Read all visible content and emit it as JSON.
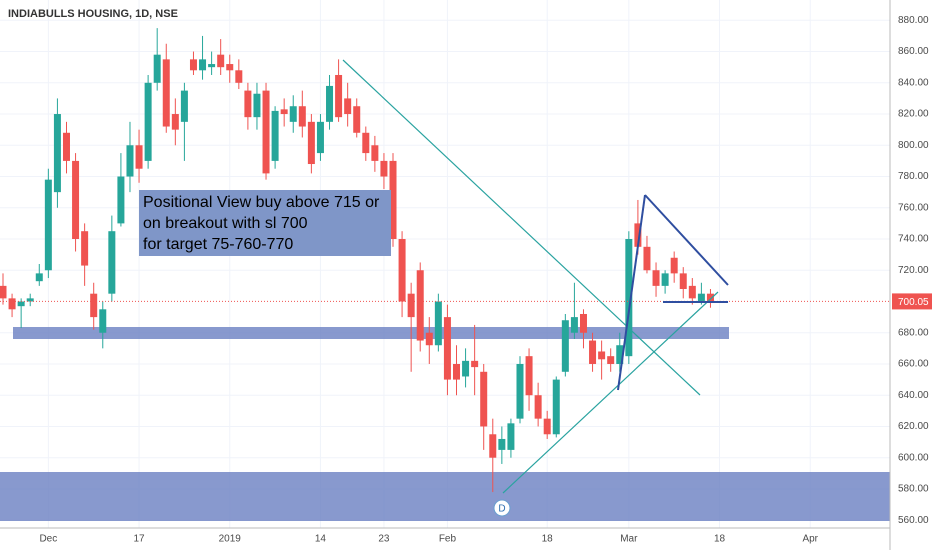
{
  "chart_data": {
    "type": "candlestick",
    "title": "INDIABULLS HOUSING, 1D, NSE",
    "categories": [
      null,
      null,
      null,
      null,
      null,
      "Dec",
      null,
      null,
      null,
      null,
      null,
      null,
      null,
      null,
      null,
      "17",
      null,
      null,
      null,
      null,
      null,
      null,
      null,
      null,
      null,
      "2019",
      null,
      null,
      null,
      null,
      null,
      null,
      null,
      null,
      null,
      "14",
      null,
      null,
      null,
      null,
      null,
      null,
      "23",
      null,
      null,
      null,
      null,
      null,
      null,
      "Feb",
      null,
      null,
      null,
      null,
      null,
      null,
      null,
      null,
      null,
      null,
      "18",
      null,
      null,
      null,
      null,
      null,
      null,
      null,
      null,
      "Mar",
      null,
      null,
      null,
      null,
      null,
      null,
      null,
      null,
      null,
      "18",
      null,
      null,
      null,
      null,
      null,
      null,
      null,
      null,
      null,
      "Apr"
    ],
    "open": [
      710,
      702,
      697,
      700,
      713,
      720,
      770,
      808,
      790,
      745,
      705,
      680,
      705,
      750,
      780,
      800,
      790,
      840,
      855,
      820,
      815,
      855,
      848,
      850,
      858,
      852,
      848,
      835,
      818,
      835,
      790,
      823,
      815,
      825,
      815,
      795,
      815,
      845,
      830,
      825,
      808,
      800,
      790,
      790,
      740,
      705,
      720,
      680,
      672,
      690,
      660,
      652,
      662,
      655,
      615,
      605,
      605,
      625,
      665,
      640,
      625,
      615,
      655,
      680,
      692,
      675,
      668,
      665,
      660,
      665,
      750,
      735,
      720,
      710,
      728,
      718,
      710,
      700,
      705,
      null,
      null,
      null,
      null,
      null,
      null,
      null,
      null,
      null,
      null,
      null
    ],
    "high": [
      718,
      705,
      702,
      705,
      724,
      785,
      830,
      815,
      795,
      750,
      712,
      700,
      755,
      795,
      815,
      810,
      845,
      875,
      865,
      830,
      840,
      860,
      870,
      860,
      868,
      858,
      855,
      840,
      840,
      840,
      825,
      830,
      832,
      835,
      820,
      820,
      845,
      855,
      840,
      830,
      812,
      806,
      795,
      795,
      745,
      712,
      725,
      690,
      705,
      698,
      672,
      670,
      685,
      660,
      625,
      620,
      625,
      665,
      670,
      648,
      630,
      652,
      692,
      712,
      695,
      680,
      675,
      670,
      680,
      745,
      765,
      742,
      725,
      720,
      732,
      722,
      715,
      712,
      708,
      null,
      null,
      null,
      null,
      null,
      null,
      null,
      null,
      null,
      null,
      null
    ],
    "low": [
      698,
      690,
      683,
      697,
      710,
      715,
      760,
      782,
      732,
      710,
      682,
      670,
      700,
      748,
      770,
      776,
      785,
      835,
      808,
      800,
      790,
      845,
      842,
      845,
      845,
      840,
      836,
      810,
      810,
      778,
      785,
      812,
      808,
      805,
      782,
      790,
      810,
      815,
      812,
      805,
      790,
      783,
      772,
      735,
      690,
      655,
      668,
      660,
      668,
      640,
      640,
      645,
      640,
      605,
      578,
      596,
      600,
      622,
      630,
      620,
      612,
      613,
      652,
      676,
      670,
      655,
      650,
      655,
      655,
      660,
      730,
      718,
      703,
      705,
      712,
      702,
      698,
      698,
      696,
      null,
      null,
      null,
      null,
      null,
      null,
      null,
      null,
      null,
      null,
      null
    ],
    "close": [
      702,
      695,
      700,
      702,
      718,
      778,
      820,
      790,
      740,
      723,
      690,
      695,
      745,
      780,
      800,
      785,
      840,
      858,
      812,
      810,
      835,
      848,
      855,
      852,
      850,
      848,
      840,
      818,
      833,
      782,
      822,
      820,
      825,
      812,
      788,
      815,
      838,
      818,
      820,
      808,
      795,
      790,
      780,
      740,
      700,
      690,
      675,
      672,
      700,
      650,
      650,
      662,
      658,
      620,
      600,
      612,
      622,
      660,
      640,
      625,
      615,
      650,
      688,
      690,
      680,
      660,
      663,
      660,
      672,
      740,
      735,
      720,
      710,
      718,
      718,
      708,
      702,
      705,
      700,
      null,
      null,
      null,
      null,
      null,
      null,
      null,
      null,
      null,
      null,
      null
    ],
    "up_color": "#26a69a",
    "down_color": "#ef5350",
    "ylim": [
      555,
      893
    ],
    "yticks": [
      {
        "value": 560,
        "label": "560.00"
      },
      {
        "value": 580,
        "label": "580.00"
      },
      {
        "value": 600,
        "label": "600.00"
      },
      {
        "value": 620,
        "label": "620.00"
      },
      {
        "value": 640,
        "label": "640.00"
      },
      {
        "value": 660,
        "label": "660.00"
      },
      {
        "value": 680,
        "label": "680.00"
      },
      {
        "value": 720,
        "label": "720.00"
      },
      {
        "value": 740,
        "label": "740.00"
      },
      {
        "value": 760,
        "label": "760.00"
      },
      {
        "value": 780,
        "label": "780.00"
      },
      {
        "value": 800,
        "label": "800.00"
      },
      {
        "value": 820,
        "label": "820.00"
      },
      {
        "value": 840,
        "label": "840.00"
      },
      {
        "value": 860,
        "label": "860.00"
      },
      {
        "value": 880,
        "label": "880.00"
      }
    ],
    "last_price": 700.05,
    "grid": true,
    "annotation": [
      "Positional View buy above 715 or",
      "on breakout with sl 700",
      "for target 75-760-770"
    ],
    "event_marker": "D"
  }
}
